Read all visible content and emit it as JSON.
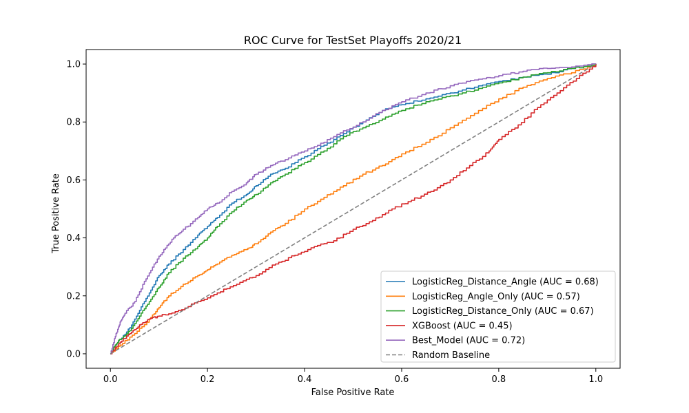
{
  "chart_data": {
    "type": "line",
    "title": "ROC Curve for TestSet Playoffs 2020/21",
    "xlabel": "False Positive Rate",
    "ylabel": "True Positive Rate",
    "xlim": [
      -0.05,
      1.05
    ],
    "ylim": [
      -0.05,
      1.05
    ],
    "xticks": [
      0.0,
      0.2,
      0.4,
      0.6,
      0.8,
      1.0
    ],
    "yticks": [
      0.0,
      0.2,
      0.4,
      0.6,
      0.8,
      1.0
    ],
    "tick_labels": [
      "0.0",
      "0.2",
      "0.4",
      "0.6",
      "0.8",
      "1.0"
    ],
    "grid": false,
    "legend_position": "lower-right",
    "series": [
      {
        "name": "LogisticReg_Distance_Angle (AUC = 0.68)",
        "color": "#1f77b4",
        "dash": "solid",
        "x": [
          0.0,
          0.01,
          0.02,
          0.04,
          0.06,
          0.08,
          0.1,
          0.12,
          0.15,
          0.18,
          0.2,
          0.22,
          0.25,
          0.28,
          0.3,
          0.33,
          0.36,
          0.4,
          0.44,
          0.48,
          0.52,
          0.56,
          0.6,
          0.65,
          0.7,
          0.75,
          0.8,
          0.85,
          0.9,
          0.95,
          1.0
        ],
        "y": [
          0.0,
          0.03,
          0.05,
          0.09,
          0.15,
          0.21,
          0.27,
          0.31,
          0.36,
          0.41,
          0.44,
          0.47,
          0.52,
          0.55,
          0.58,
          0.62,
          0.64,
          0.68,
          0.72,
          0.76,
          0.8,
          0.84,
          0.86,
          0.88,
          0.9,
          0.92,
          0.94,
          0.955,
          0.965,
          0.985,
          1.0
        ]
      },
      {
        "name": "LogisticReg_Angle_Only (AUC = 0.57)",
        "color": "#ff7f0e",
        "dash": "solid",
        "x": [
          0.0,
          0.02,
          0.05,
          0.08,
          0.1,
          0.12,
          0.15,
          0.18,
          0.2,
          0.22,
          0.25,
          0.28,
          0.3,
          0.33,
          0.36,
          0.4,
          0.44,
          0.48,
          0.52,
          0.56,
          0.6,
          0.65,
          0.7,
          0.75,
          0.8,
          0.85,
          0.9,
          0.95,
          1.0
        ],
        "y": [
          0.0,
          0.03,
          0.07,
          0.12,
          0.16,
          0.2,
          0.24,
          0.27,
          0.29,
          0.31,
          0.34,
          0.36,
          0.38,
          0.42,
          0.45,
          0.5,
          0.54,
          0.58,
          0.62,
          0.65,
          0.69,
          0.73,
          0.78,
          0.83,
          0.88,
          0.92,
          0.95,
          0.97,
          1.0
        ]
      },
      {
        "name": "LogisticReg_Distance_Only (AUC = 0.67)",
        "color": "#2ca02c",
        "dash": "solid",
        "x": [
          0.0,
          0.01,
          0.02,
          0.04,
          0.06,
          0.08,
          0.1,
          0.12,
          0.15,
          0.18,
          0.2,
          0.22,
          0.25,
          0.28,
          0.3,
          0.33,
          0.36,
          0.4,
          0.44,
          0.48,
          0.52,
          0.56,
          0.6,
          0.65,
          0.7,
          0.75,
          0.8,
          0.85,
          0.9,
          0.95,
          1.0
        ],
        "y": [
          0.0,
          0.03,
          0.05,
          0.08,
          0.13,
          0.18,
          0.23,
          0.28,
          0.33,
          0.37,
          0.4,
          0.44,
          0.49,
          0.53,
          0.55,
          0.59,
          0.62,
          0.66,
          0.7,
          0.75,
          0.78,
          0.81,
          0.84,
          0.87,
          0.89,
          0.91,
          0.935,
          0.955,
          0.97,
          0.985,
          1.0
        ]
      },
      {
        "name": "XGBoost (AUC = 0.45)",
        "color": "#d62728",
        "dash": "solid",
        "x": [
          0.0,
          0.02,
          0.04,
          0.06,
          0.08,
          0.1,
          0.14,
          0.18,
          0.22,
          0.26,
          0.3,
          0.34,
          0.38,
          0.42,
          0.46,
          0.5,
          0.54,
          0.58,
          0.62,
          0.66,
          0.7,
          0.74,
          0.78,
          0.8,
          0.84,
          0.88,
          0.92,
          0.96,
          1.0
        ],
        "y": [
          0.0,
          0.04,
          0.07,
          0.1,
          0.12,
          0.13,
          0.15,
          0.18,
          0.21,
          0.24,
          0.27,
          0.31,
          0.34,
          0.37,
          0.39,
          0.43,
          0.46,
          0.5,
          0.53,
          0.56,
          0.6,
          0.65,
          0.7,
          0.74,
          0.79,
          0.85,
          0.9,
          0.95,
          1.0
        ]
      },
      {
        "name": "Best_Model (AUC = 0.72)",
        "color": "#9467bd",
        "dash": "solid",
        "x": [
          0.0,
          0.01,
          0.02,
          0.03,
          0.05,
          0.07,
          0.09,
          0.11,
          0.13,
          0.15,
          0.18,
          0.2,
          0.22,
          0.25,
          0.28,
          0.3,
          0.33,
          0.36,
          0.4,
          0.44,
          0.48,
          0.52,
          0.56,
          0.6,
          0.65,
          0.7,
          0.75,
          0.8,
          0.85,
          0.9,
          0.95,
          1.0
        ],
        "y": [
          0.0,
          0.06,
          0.11,
          0.14,
          0.18,
          0.25,
          0.31,
          0.36,
          0.4,
          0.43,
          0.47,
          0.5,
          0.52,
          0.56,
          0.59,
          0.62,
          0.65,
          0.67,
          0.7,
          0.73,
          0.77,
          0.8,
          0.84,
          0.87,
          0.9,
          0.925,
          0.945,
          0.96,
          0.975,
          0.985,
          0.99,
          1.0
        ]
      },
      {
        "name": "Random Baseline",
        "color": "#808080",
        "dash": "dashed",
        "x": [
          0.0,
          1.0
        ],
        "y": [
          0.0,
          1.0
        ]
      }
    ]
  }
}
